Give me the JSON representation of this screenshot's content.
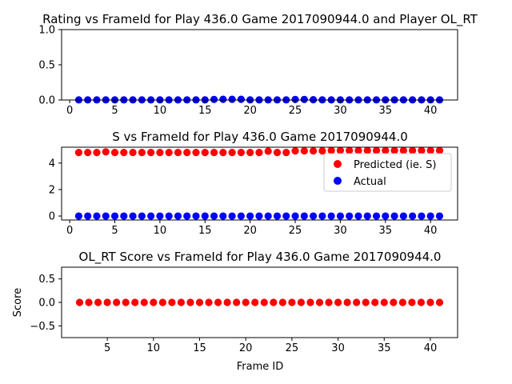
{
  "chart_data": [
    {
      "type": "scatter",
      "title": "Rating vs FrameId for Play 436.0 Game 2017090944.0 and Player OL_RT",
      "xlabel": "",
      "ylabel": "",
      "xlim": [
        -0.9,
        43.0
      ],
      "ylim": [
        0.0,
        1.0
      ],
      "xticks": [
        0,
        5,
        10,
        15,
        20,
        25,
        30,
        35,
        40
      ],
      "yticks": [
        0.0,
        0.5,
        1.0
      ],
      "ytick_labels": [
        "0.0",
        "0.5",
        "1.0"
      ],
      "grid": false,
      "series": [
        {
          "color": "#0000ff",
          "x": [
            1,
            2,
            3,
            4,
            5,
            6,
            7,
            8,
            9,
            10,
            11,
            12,
            13,
            14,
            15,
            16,
            17,
            18,
            19,
            20,
            21,
            22,
            23,
            24,
            25,
            26,
            27,
            28,
            29,
            30,
            31,
            32,
            33,
            34,
            35,
            36,
            37,
            38,
            39,
            40,
            41
          ],
          "y": [
            0.002,
            0.002,
            0.002,
            0.002,
            0.002,
            0.002,
            0.002,
            0.002,
            0.002,
            0.002,
            0.002,
            0.002,
            0.002,
            0.002,
            0.002,
            0.008,
            0.01,
            0.01,
            0.01,
            0.002,
            0.002,
            0.002,
            0.002,
            0.002,
            0.008,
            0.008,
            0.004,
            0.002,
            0.002,
            0.002,
            0.002,
            0.002,
            0.002,
            0.002,
            0.002,
            0.002,
            0.002,
            0.002,
            0.002,
            0.002,
            0.002
          ]
        }
      ]
    },
    {
      "type": "scatter",
      "title": "S vs FrameId for Play 436.0 Game 2017090944.0",
      "xlabel": "",
      "ylabel": "",
      "xlim": [
        -0.9,
        43.0
      ],
      "ylim": [
        -0.3,
        5.2
      ],
      "xticks": [
        0,
        5,
        10,
        15,
        20,
        25,
        30,
        35,
        40
      ],
      "yticks": [
        0,
        2,
        4
      ],
      "ytick_labels": [
        "0",
        "2",
        "4"
      ],
      "grid": false,
      "legend": "right",
      "series": [
        {
          "name": "Predicted (ie. S)",
          "color": "#ff0000",
          "x": [
            1,
            2,
            3,
            4,
            5,
            6,
            7,
            8,
            9,
            10,
            11,
            12,
            13,
            14,
            15,
            16,
            17,
            18,
            19,
            20,
            21,
            22,
            23,
            24,
            25,
            26,
            27,
            28,
            29,
            30,
            31,
            32,
            33,
            34,
            35,
            36,
            37,
            38,
            39,
            40,
            41
          ],
          "y": [
            4.8,
            4.8,
            4.8,
            4.85,
            4.8,
            4.8,
            4.8,
            4.8,
            4.8,
            4.8,
            4.8,
            4.8,
            4.8,
            4.8,
            4.8,
            4.8,
            4.8,
            4.8,
            4.8,
            4.8,
            4.8,
            4.9,
            4.8,
            4.8,
            4.92,
            4.92,
            4.92,
            4.92,
            4.95,
            4.95,
            4.95,
            4.95,
            4.95,
            4.95,
            4.95,
            4.95,
            4.95,
            4.95,
            4.95,
            4.95,
            4.95
          ]
        },
        {
          "name": "Actual",
          "color": "#0000ff",
          "x": [
            1,
            2,
            3,
            4,
            5,
            6,
            7,
            8,
            9,
            10,
            11,
            12,
            13,
            14,
            15,
            16,
            17,
            18,
            19,
            20,
            21,
            22,
            23,
            24,
            25,
            26,
            27,
            28,
            29,
            30,
            31,
            32,
            33,
            34,
            35,
            36,
            37,
            38,
            39,
            40,
            41
          ],
          "y": [
            0,
            0,
            0,
            0,
            0,
            0,
            0,
            0,
            0,
            0,
            0,
            0,
            0,
            0,
            0,
            0,
            0,
            0,
            0,
            0,
            0,
            0,
            0,
            0,
            0,
            0,
            0,
            0,
            0,
            0,
            0,
            0,
            0,
            0,
            0,
            0,
            0,
            0,
            0,
            0,
            0
          ]
        }
      ]
    },
    {
      "type": "scatter",
      "title": "OL_RT Score vs FrameId for Play 436.0 Game 2017090944.0",
      "xlabel": "Frame ID",
      "ylabel": "Score",
      "xlim": [
        0.05,
        42.95
      ],
      "ylim": [
        -0.75,
        0.75
      ],
      "xticks": [
        5,
        10,
        15,
        20,
        25,
        30,
        35,
        40
      ],
      "yticks": [
        -0.5,
        0.0,
        0.5
      ],
      "ytick_labels": [
        "−0.5",
        "0.0",
        "0.5"
      ],
      "grid": false,
      "series": [
        {
          "color": "#ff0000",
          "x": [
            2,
            3,
            4,
            5,
            6,
            7,
            8,
            9,
            10,
            11,
            12,
            13,
            14,
            15,
            16,
            17,
            18,
            19,
            20,
            21,
            22,
            23,
            24,
            25,
            26,
            27,
            28,
            29,
            30,
            31,
            32,
            33,
            34,
            35,
            36,
            37,
            38,
            39,
            40,
            41
          ],
          "y": [
            0,
            0,
            0,
            0,
            0,
            0,
            0,
            0,
            0,
            0,
            0,
            0,
            0,
            0,
            0,
            0,
            0,
            0,
            0,
            0,
            0,
            0,
            0,
            0,
            0,
            0,
            0,
            0,
            0,
            0,
            0,
            0,
            0,
            0,
            0,
            0,
            0,
            0,
            0,
            0
          ]
        }
      ]
    }
  ]
}
